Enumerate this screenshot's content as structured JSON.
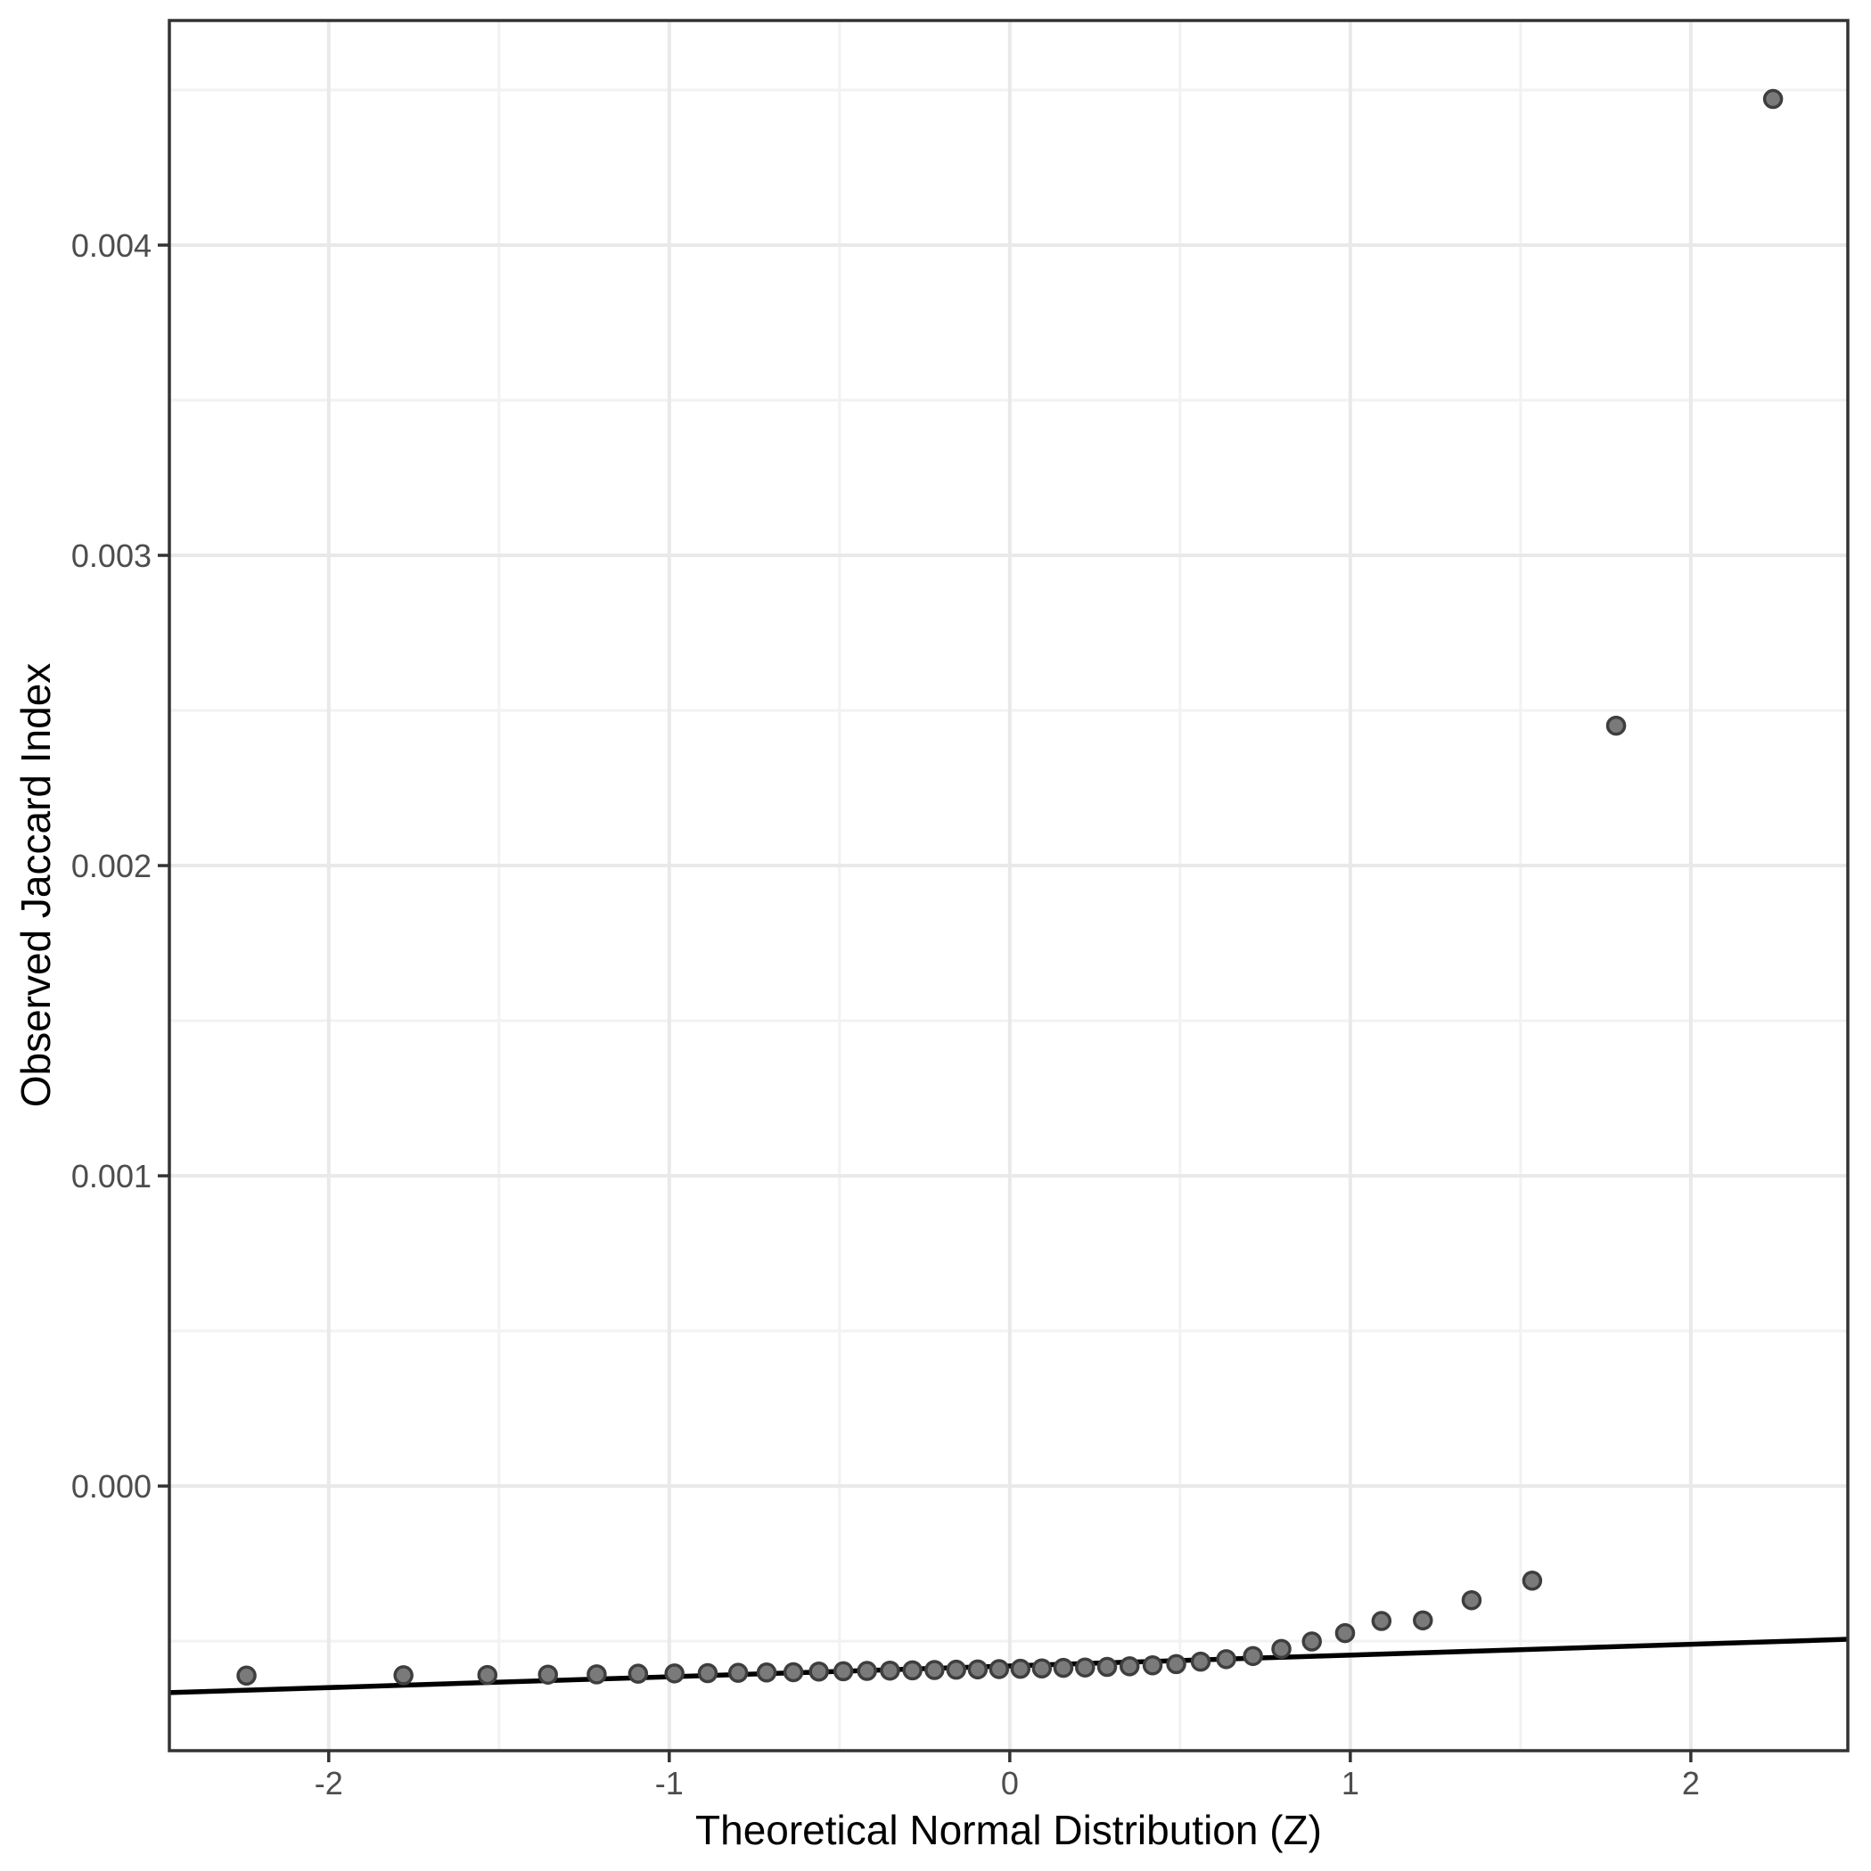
{
  "chart_data": {
    "type": "scatter",
    "subtype": "qq-plot",
    "title": "",
    "xlabel": "Theoretical Normal Distribution (Z)",
    "ylabel": "Observed Jaccard Index",
    "xlim": [
      -2.468,
      2.461
    ],
    "ylim": [
      -0.000853,
      0.004724
    ],
    "grid": true,
    "legend_position": "none",
    "x_axis": {
      "tick_values": [
        -2,
        -1,
        0,
        1,
        2
      ],
      "tick_labels": [
        "-2",
        "-1",
        "0",
        "1",
        "2"
      ],
      "minor_values": [
        -1.5,
        -0.5,
        0.5,
        1.5
      ]
    },
    "y_axis": {
      "tick_values": [
        0.0,
        0.001,
        0.002,
        0.003,
        0.004
      ],
      "tick_labels": [
        "0.000",
        "0.001",
        "0.002",
        "0.003",
        "0.004"
      ],
      "minor_values": [
        -0.0005,
        0.0005,
        0.0015,
        0.0025,
        0.0035,
        0.0045
      ]
    },
    "points": [
      [
        -2.2414,
        -0.000611
      ],
      [
        -1.7805,
        -0.00061
      ],
      [
        -1.5341,
        -0.000609
      ],
      [
        -1.3562,
        -0.000608
      ],
      [
        -1.2131,
        -0.000607
      ],
      [
        -1.0915,
        -0.000605
      ],
      [
        -0.9846,
        -0.000604
      ],
      [
        -0.8871,
        -0.000603
      ],
      [
        -0.7976,
        -0.000602
      ],
      [
        -0.7141,
        -0.000601
      ],
      [
        -0.6355,
        -0.0006
      ],
      [
        -0.5606,
        -0.000598
      ],
      [
        -0.4888,
        -0.000597
      ],
      [
        -0.4193,
        -0.000596
      ],
      [
        -0.3518,
        -0.000595
      ],
      [
        -0.2858,
        -0.000594
      ],
      [
        -0.2211,
        -0.000593
      ],
      [
        -0.1573,
        -0.000592
      ],
      [
        -0.0942,
        -0.000591
      ],
      [
        -0.0314,
        -0.00059
      ],
      [
        0.0314,
        -0.000589
      ],
      [
        0.0942,
        -0.000588
      ],
      [
        0.1573,
        -0.000586
      ],
      [
        0.2211,
        -0.000585
      ],
      [
        0.2858,
        -0.000583
      ],
      [
        0.3518,
        -0.000581
      ],
      [
        0.4193,
        -0.000578
      ],
      [
        0.4888,
        -0.000574
      ],
      [
        0.5606,
        -0.000566
      ],
      [
        0.6355,
        -0.000558
      ],
      [
        0.7141,
        -0.000548
      ],
      [
        0.7976,
        -0.000525
      ],
      [
        0.8871,
        -0.000501
      ],
      [
        0.9846,
        -0.000474
      ],
      [
        1.0915,
        -0.000435
      ],
      [
        1.2131,
        -0.000433
      ],
      [
        1.3562,
        -0.000368
      ],
      [
        1.5341,
        -0.000305
      ],
      [
        1.7805,
        0.002451
      ],
      [
        2.2414,
        0.004471
      ]
    ],
    "qq_line": {
      "z_start": -2.468,
      "v_start": -0.000666,
      "z_end": 2.461,
      "v_end": -0.000494
    },
    "colors": {
      "background": "#ffffff",
      "panel_background": "#ffffff",
      "panel_border": "#333333",
      "grid_major": "#e9e9e9",
      "grid_minor": "#f2f2f2",
      "tick_mark": "#333333",
      "tick_label": "#4d4d4d",
      "axis_title": "#000000",
      "point_fill": "#7a7a7a",
      "point_stroke": "#3e3e3e",
      "reference_line": "#000000"
    }
  }
}
